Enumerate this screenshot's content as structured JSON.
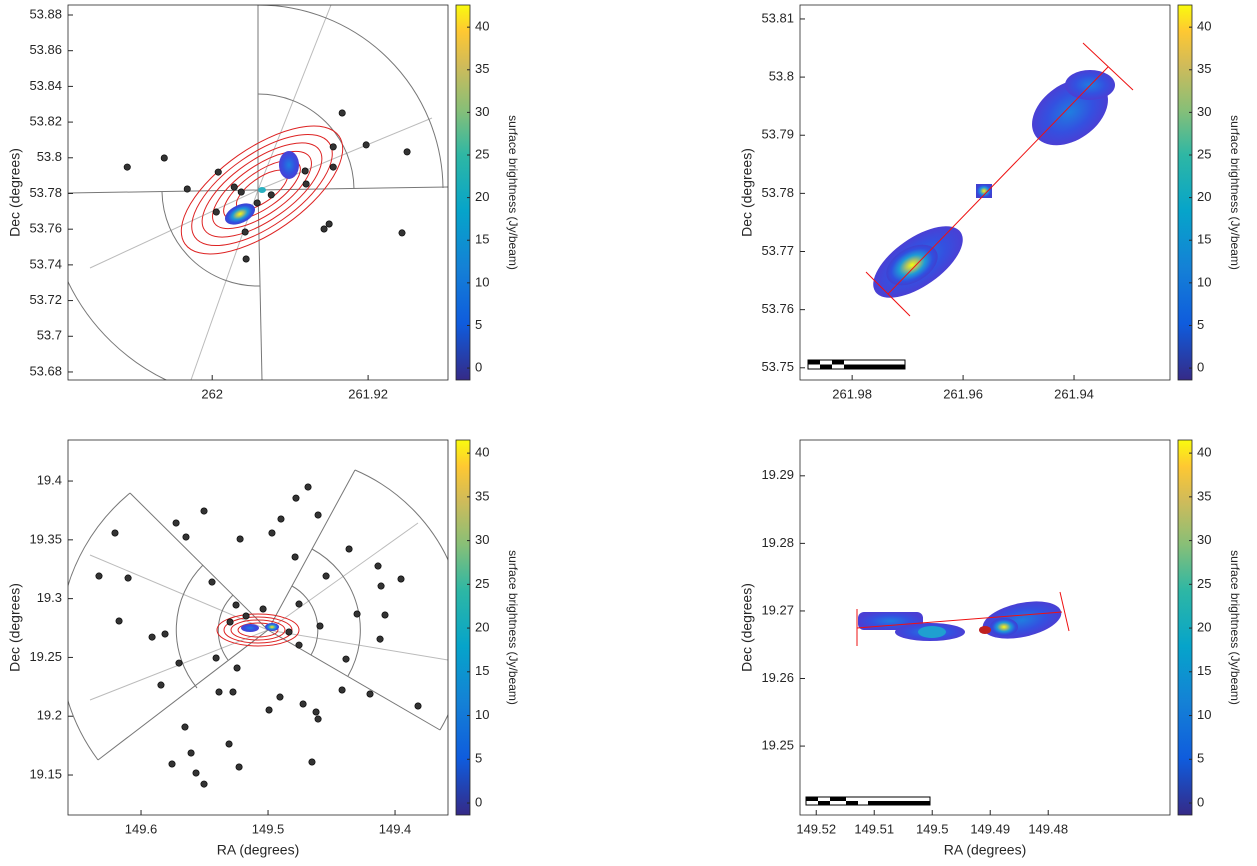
{
  "chart_data": [
    {
      "type": "scatter",
      "ylabel": "Dec (degrees)",
      "xlim": [
        262.074,
        261.879
      ],
      "ylim": [
        53.6755,
        53.8856
      ],
      "xticks": [
        262,
        261.92
      ],
      "yticks": [
        53.68,
        53.7,
        53.72,
        53.74,
        53.76,
        53.78,
        53.8,
        53.82,
        53.84,
        53.86,
        53.88
      ],
      "x": [
        262.0436,
        262.0246,
        262.0128,
        261.9969,
        261.9887,
        261.9851,
        261.9979,
        261.9831,
        261.9826,
        261.9769,
        261.9697,
        261.9523,
        261.9518,
        261.9379,
        261.9333,
        261.9379,
        261.9426,
        261.94,
        261.921,
        261.9,
        261.9026
      ],
      "y": [
        53.7948,
        53.7999,
        53.7825,
        53.792,
        53.7836,
        53.7808,
        53.7696,
        53.7584,
        53.7433,
        53.7747,
        53.7792,
        53.7926,
        53.7853,
        53.7948,
        53.8251,
        53.8061,
        53.7601,
        53.7629,
        53.8072,
        53.8033,
        53.7579
      ],
      "color": "#333333",
      "clim": [
        -1.4,
        42.6
      ],
      "cticks": [
        0,
        5,
        10,
        15,
        20,
        25,
        30,
        35,
        40
      ],
      "colorbar_label": "surface brightness (Jy/beam)"
    },
    {
      "type": "image",
      "ylabel": "Dec (degrees)",
      "xlim": [
        261.9894,
        261.9227
      ],
      "ylim": [
        53.7479,
        53.8124
      ],
      "xticks": [
        261.98,
        261.96,
        261.94
      ],
      "yticks": [
        53.75,
        53.76,
        53.77,
        53.78,
        53.79,
        53.8,
        53.81
      ],
      "clim": [
        -1.4,
        42.6
      ],
      "cticks": [
        0,
        5,
        10,
        15,
        20,
        25,
        30,
        35,
        40
      ],
      "colorbar_label": "surface brightness (Jy/beam)"
    },
    {
      "type": "scatter",
      "xlabel": "RA (degrees)",
      "ylabel": "Dec (degrees)",
      "xlim": [
        149.6575,
        149.3583
      ],
      "ylim": [
        19.116,
        19.4349
      ],
      "xticks": [
        149.6,
        149.5,
        149.4
      ],
      "yticks": [
        19.15,
        19.2,
        19.25,
        19.3,
        19.35,
        19.4
      ],
      "x": [
        149.5504,
        149.5724,
        149.5646,
        149.6205,
        149.6102,
        149.5441,
        149.522,
        149.4969,
        149.4898,
        149.478,
        149.4685,
        149.4787,
        149.4606,
        149.4362,
        149.4134,
        149.411,
        149.3953,
        149.4543,
        149.4756,
        149.4591,
        149.4299,
        149.4118,
        149.4079,
        149.4386,
        149.4417,
        149.4197,
        149.3819,
        149.4622,
        149.4606,
        149.4724,
        149.4906,
        149.5276,
        149.5386,
        149.5244,
        149.5409,
        149.5701,
        149.5843,
        149.5654,
        149.5606,
        149.5756,
        149.5567,
        149.5504,
        149.5307,
        149.5228,
        149.4654,
        149.4992,
        149.6173,
        149.6331,
        149.5913,
        149.5811,
        149.5173,
        149.5252,
        149.5039,
        149.4835,
        149.4756,
        149.5299
      ],
      "y": [
        19.3745,
        19.3643,
        19.3524,
        19.3558,
        19.3175,
        19.3141,
        19.3507,
        19.3558,
        19.3677,
        19.3855,
        19.3949,
        19.3354,
        19.3711,
        19.3422,
        19.3277,
        19.3107,
        19.3167,
        19.3192,
        19.2954,
        19.2767,
        19.2869,
        19.2656,
        19.2861,
        19.2486,
        19.2223,
        19.2189,
        19.2087,
        19.2036,
        19.1976,
        19.2104,
        19.2163,
        19.2206,
        19.2206,
        19.241,
        19.2495,
        19.2452,
        19.2265,
        19.1908,
        19.1687,
        19.1594,
        19.1517,
        19.1423,
        19.1764,
        19.1568,
        19.1611,
        19.2053,
        19.281,
        19.3192,
        19.2673,
        19.2699,
        19.2852,
        19.2946,
        19.2912,
        19.2716,
        19.2605,
        19.2801
      ],
      "color": "#333333",
      "clim": [
        -1.37,
        41.5
      ],
      "cticks": [
        0,
        5,
        10,
        15,
        20,
        25,
        30,
        35,
        40
      ],
      "colorbar_label": "surface brightness (Jy/beam)"
    },
    {
      "type": "image",
      "xlabel": "RA (degrees)",
      "ylabel": "Dec (degrees)",
      "xlim": [
        149.5228,
        149.459
      ],
      "ylim": [
        19.2398,
        19.2953
      ],
      "xticks": [
        149.52,
        149.51,
        149.5,
        149.49,
        149.48
      ],
      "yticks": [
        19.25,
        19.26,
        19.27,
        19.28,
        19.29
      ],
      "clim": [
        -1.37,
        41.5
      ],
      "cticks": [
        0,
        5,
        10,
        15,
        20,
        25,
        30,
        35,
        40
      ],
      "colorbar_label": "surface brightness (Jy/beam)"
    }
  ]
}
